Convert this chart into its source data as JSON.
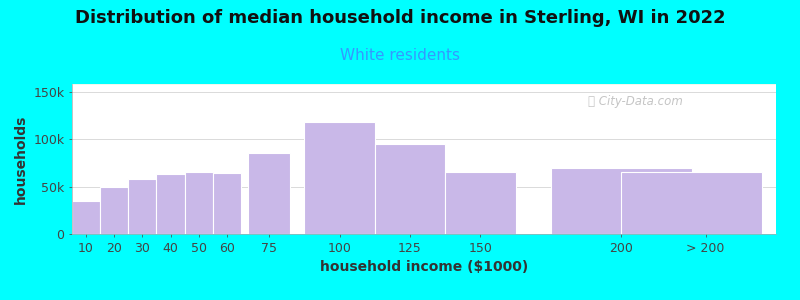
{
  "title": "Distribution of median household income in Sterling, WI in 2022",
  "subtitle": "White residents",
  "xlabel": "household income ($1000)",
  "ylabel": "households",
  "bar_color": "#c9b8e8",
  "bar_edge_color": "#ffffff",
  "background_color": "#00ffff",
  "plot_bg_top": "#e8f5e2",
  "plot_bg_bottom": "#ffffff",
  "bar_centers": [
    10,
    20,
    30,
    40,
    50,
    60,
    75,
    100,
    125,
    150,
    200,
    225
  ],
  "bar_widths": [
    10,
    10,
    10,
    10,
    10,
    10,
    15,
    25,
    25,
    25,
    50,
    50
  ],
  "values": [
    35000,
    50000,
    58000,
    63000,
    65000,
    64000,
    85000,
    118000,
    95000,
    65000,
    70000,
    65000
  ],
  "xtick_positions": [
    10,
    20,
    30,
    40,
    50,
    60,
    75,
    100,
    125,
    150,
    200,
    230
  ],
  "xtick_labels": [
    "10",
    "20",
    "30",
    "40",
    "50",
    "60",
    "75",
    "100",
    "125",
    "150",
    "200",
    "> 200"
  ],
  "yticks": [
    0,
    50000,
    100000,
    150000
  ],
  "ytick_labels": [
    "0",
    "50k",
    "100k",
    "150k"
  ],
  "xlim": [
    5,
    255
  ],
  "ylim": [
    0,
    158000
  ],
  "title_fontsize": 13,
  "subtitle_fontsize": 11,
  "axis_label_fontsize": 10,
  "tick_fontsize": 9,
  "title_color": "#111111",
  "subtitle_color": "#3399ff",
  "watermark_text": "City-Data.com",
  "watermark_color": "#bbbbbb"
}
